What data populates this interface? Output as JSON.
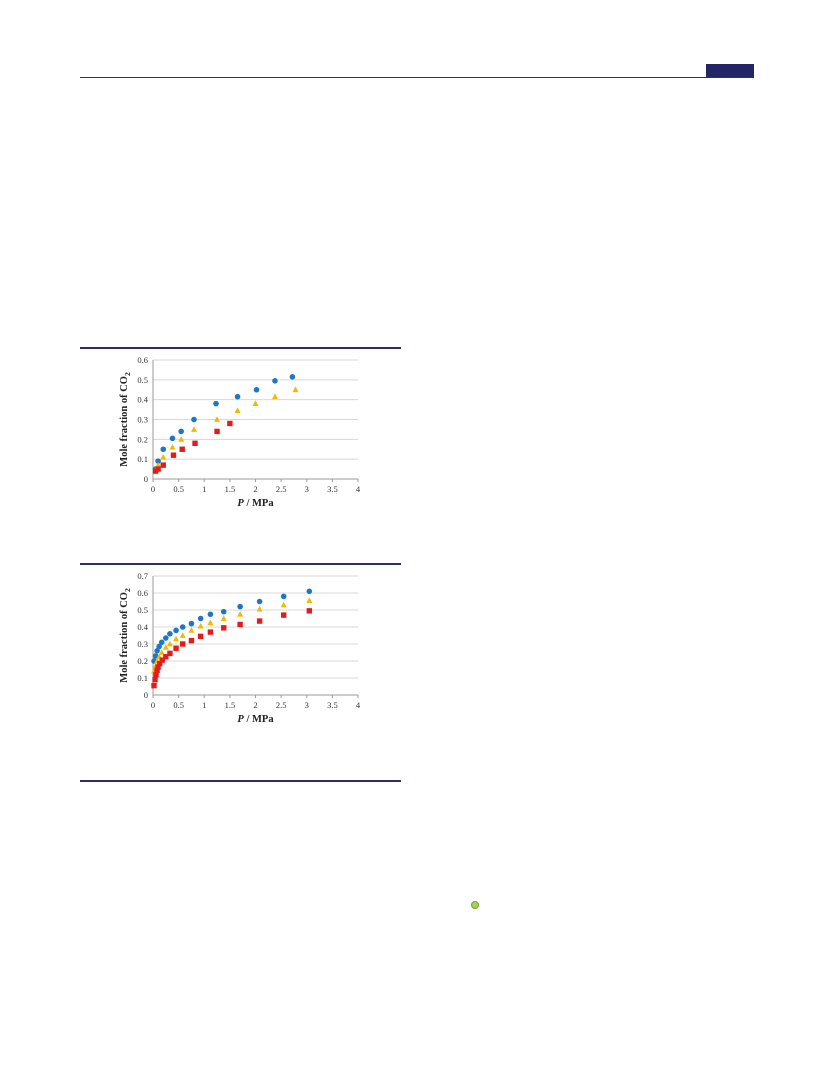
{
  "colors": {
    "series_1": "#1f77c4",
    "series_2": "#f5b800",
    "series_3": "#e31b1b",
    "grid": "#d8d8d8",
    "rule": "#2b2f6e",
    "header_tab": "#222566",
    "marker_dot": "#a8d05a"
  },
  "icons": {
    "circle_marker": "circle-icon",
    "triangle_marker": "triangle-icon",
    "square_marker": "square-icon"
  },
  "chart_data": [
    {
      "type": "scatter",
      "xlabel_italic": "P",
      "xlabel_rest": " / MPa",
      "ylabel_main": "Mole fraction of CO",
      "ylabel_sub": "2",
      "xlim": [
        0,
        4
      ],
      "ylim": [
        0,
        0.6
      ],
      "x_ticks": [
        "0",
        "0.5",
        "1",
        "1.5",
        "2",
        "2.5",
        "3",
        "3.5",
        "4"
      ],
      "y_ticks": [
        "0",
        "0.1",
        "0.2",
        "0.3",
        "0.4",
        "0.5",
        "0.6"
      ],
      "grid": "horizontal",
      "series": [
        {
          "marker": "circle",
          "x": [
            0.05,
            0.1,
            0.2,
            0.38,
            0.55,
            0.8,
            1.23,
            1.65,
            2.02,
            2.38,
            2.72
          ],
          "y": [
            0.05,
            0.09,
            0.15,
            0.205,
            0.24,
            0.3,
            0.38,
            0.415,
            0.45,
            0.495,
            0.515
          ]
        },
        {
          "marker": "triangle",
          "x": [
            0.05,
            0.1,
            0.2,
            0.38,
            0.55,
            0.8,
            1.25,
            1.65,
            2.0,
            2.38,
            2.78
          ],
          "y": [
            0.045,
            0.07,
            0.11,
            0.16,
            0.2,
            0.25,
            0.3,
            0.345,
            0.38,
            0.415,
            0.45
          ]
        },
        {
          "marker": "square",
          "x": [
            0.05,
            0.1,
            0.2,
            0.4,
            0.57,
            0.82,
            1.25,
            1.5
          ],
          "y": [
            0.04,
            0.05,
            0.07,
            0.12,
            0.15,
            0.18,
            0.24,
            0.28
          ]
        }
      ]
    },
    {
      "type": "scatter",
      "xlabel_italic": "P",
      "xlabel_rest": " / MPa",
      "ylabel_main": "Mole fraction of CO",
      "ylabel_sub": "2",
      "xlim": [
        0,
        4
      ],
      "ylim": [
        0,
        0.7
      ],
      "x_ticks": [
        "0",
        "0.5",
        "1",
        "1.5",
        "2",
        "2.5",
        "3",
        "3.5",
        "4"
      ],
      "y_ticks": [
        "0",
        "0.1",
        "0.2",
        "0.3",
        "0.4",
        "0.5",
        "0.6",
        "0.7"
      ],
      "grid": "horizontal",
      "series": [
        {
          "marker": "circle",
          "x": [
            0.02,
            0.05,
            0.08,
            0.12,
            0.17,
            0.25,
            0.33,
            0.45,
            0.58,
            0.75,
            0.93,
            1.12,
            1.38,
            1.7,
            2.08,
            2.55,
            3.05
          ],
          "y": [
            0.2,
            0.23,
            0.26,
            0.285,
            0.31,
            0.335,
            0.36,
            0.38,
            0.4,
            0.42,
            0.45,
            0.475,
            0.49,
            0.52,
            0.55,
            0.58,
            0.61
          ]
        },
        {
          "marker": "triangle",
          "x": [
            0.02,
            0.05,
            0.08,
            0.12,
            0.17,
            0.25,
            0.33,
            0.45,
            0.58,
            0.75,
            0.93,
            1.12,
            1.38,
            1.7,
            2.08,
            2.55,
            3.05
          ],
          "y": [
            0.14,
            0.17,
            0.2,
            0.225,
            0.25,
            0.28,
            0.3,
            0.33,
            0.35,
            0.38,
            0.405,
            0.425,
            0.45,
            0.475,
            0.505,
            0.53,
            0.555
          ]
        },
        {
          "marker": "square",
          "x": [
            0.02,
            0.04,
            0.06,
            0.08,
            0.1,
            0.13,
            0.18,
            0.25,
            0.33,
            0.45,
            0.58,
            0.75,
            0.93,
            1.12,
            1.38,
            1.7,
            2.08,
            2.55,
            3.05
          ],
          "y": [
            0.055,
            0.09,
            0.12,
            0.145,
            0.165,
            0.185,
            0.205,
            0.225,
            0.245,
            0.275,
            0.3,
            0.32,
            0.345,
            0.37,
            0.395,
            0.415,
            0.435,
            0.47,
            0.495
          ]
        }
      ]
    }
  ]
}
